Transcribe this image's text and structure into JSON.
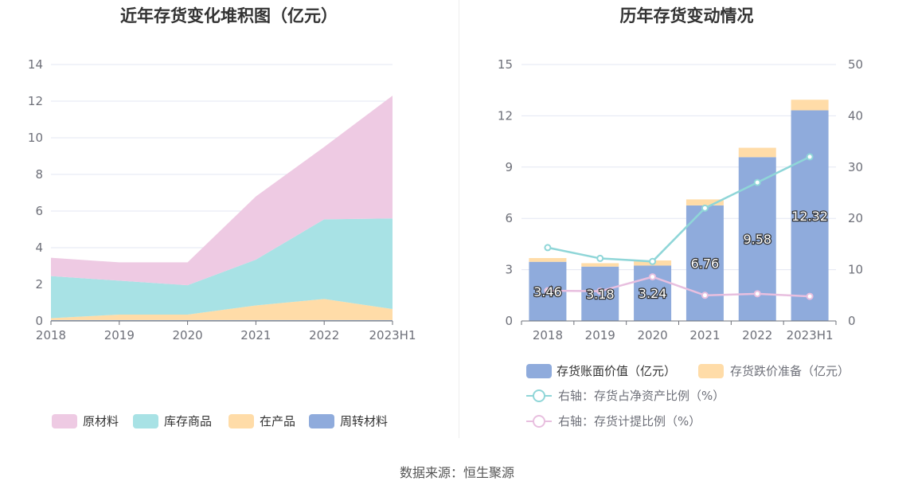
{
  "source": "数据来源：恒生聚源",
  "chart_data": [
    {
      "type": "area",
      "stacked": true,
      "title": "近年存货变化堆积图（亿元）",
      "x": [
        "2018",
        "2019",
        "2020",
        "2021",
        "2022",
        "2023H1"
      ],
      "ylim": [
        0,
        14
      ],
      "yticks": [
        0,
        2,
        4,
        6,
        8,
        10,
        12,
        14
      ],
      "grid": true,
      "legend_position": "bottom",
      "series": [
        {
          "name": "周转材料",
          "color": "#8fabdc",
          "values": [
            0.05,
            0.05,
            0.05,
            0.05,
            0.05,
            0.05
          ]
        },
        {
          "name": "在产品",
          "color": "#ffdca8",
          "values": [
            0.1,
            0.3,
            0.3,
            0.8,
            1.15,
            0.6
          ]
        },
        {
          "name": "库存商品",
          "color": "#a8e2e5",
          "values": [
            2.3,
            1.85,
            1.6,
            2.5,
            4.35,
            4.95
          ]
        },
        {
          "name": "原材料",
          "color": "#eecae3",
          "values": [
            1.0,
            1.0,
            1.25,
            3.45,
            3.95,
            6.7
          ]
        }
      ],
      "legend_order": [
        "原材料",
        "库存商品",
        "在产品",
        "周转材料"
      ]
    },
    {
      "type": "bar",
      "stacked": true,
      "title": "历年存货变动情况",
      "categories": [
        "2018",
        "2019",
        "2020",
        "2021",
        "2022",
        "2023H1"
      ],
      "ylim": [
        0,
        15
      ],
      "yticks": [
        0,
        3,
        6,
        9,
        12,
        15
      ],
      "y2lim": [
        0,
        50
      ],
      "y2ticks": [
        0,
        10,
        20,
        30,
        40,
        50
      ],
      "grid": true,
      "legend_position": "bottom",
      "series": [
        {
          "name": "存货账面价值（亿元）",
          "kind": "bar",
          "color": "#8fabdc",
          "values": [
            3.46,
            3.18,
            3.24,
            6.76,
            9.58,
            12.32
          ],
          "labels": [
            "3.46",
            "3.18",
            "3.24",
            "6.76",
            "9.58",
            "12.32"
          ]
        },
        {
          "name": "存货跌价准备（亿元）",
          "kind": "bar",
          "color": "#ffdca8",
          "values": [
            0.22,
            0.2,
            0.3,
            0.35,
            0.55,
            0.62
          ]
        },
        {
          "name": "右轴：存货占净资产比例（%）",
          "kind": "line",
          "axis": "right",
          "color": "#8fd6d8",
          "values": [
            14.3,
            12.2,
            11.6,
            22.0,
            27.0,
            32.0
          ]
        },
        {
          "name": "右轴：存货计提比例（%）",
          "kind": "line",
          "axis": "right",
          "color": "#e8bfdf",
          "values": [
            5.9,
            5.8,
            8.6,
            5.0,
            5.3,
            4.8
          ]
        }
      ]
    }
  ]
}
